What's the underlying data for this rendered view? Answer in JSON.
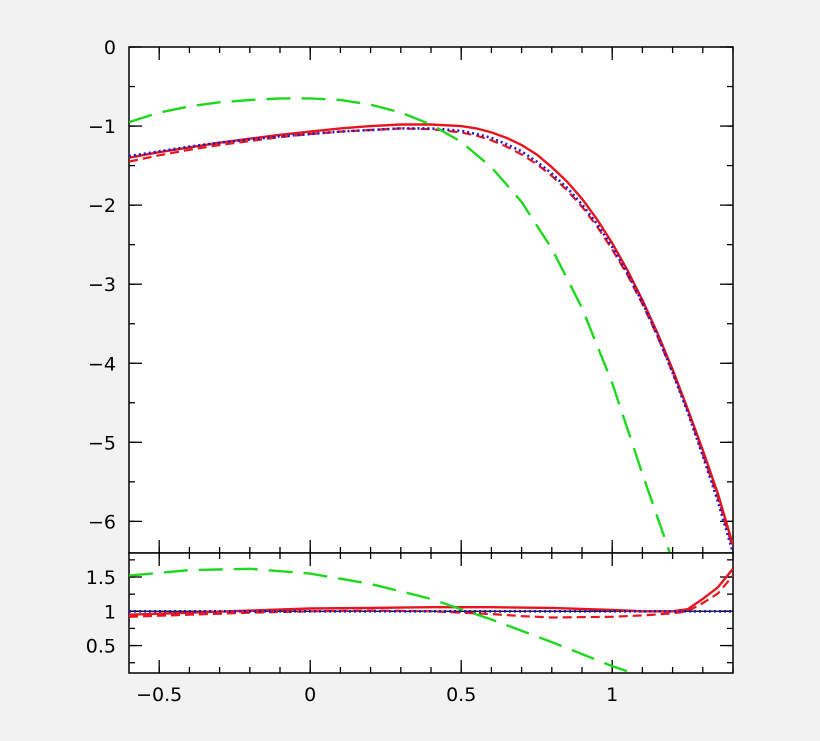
{
  "chart_data": [
    {
      "type": "line",
      "xlim": [
        -0.6,
        1.4
      ],
      "ylim": [
        -6.4,
        0
      ],
      "grid": false,
      "x_ticks": [
        -0.5,
        0,
        0.5,
        1
      ],
      "x_tick_labels": [
        "",
        "",
        "",
        ""
      ],
      "y_ticks": [
        0,
        -1,
        -2,
        -3,
        -4,
        -5,
        -6
      ],
      "y_tick_labels": [
        "0",
        "−1",
        "−2",
        "−3",
        "−4",
        "−5",
        "−6"
      ],
      "series": [
        {
          "style": "solid",
          "color": "#e8141e",
          "x": [
            -0.6,
            -0.5,
            -0.4,
            -0.3,
            -0.2,
            -0.1,
            0,
            0.1,
            0.2,
            0.3,
            0.4,
            0.5,
            0.55,
            0.6,
            0.65,
            0.7,
            0.75,
            0.8,
            0.85,
            0.9,
            0.95,
            1,
            1.05,
            1.1,
            1.15,
            1.2,
            1.25,
            1.3,
            1.35,
            1.4
          ],
          "y": [
            -1.4,
            -1.33,
            -1.27,
            -1.21,
            -1.16,
            -1.11,
            -1.07,
            -1.03,
            -1,
            -0.98,
            -0.98,
            -1,
            -1.03,
            -1.08,
            -1.15,
            -1.24,
            -1.36,
            -1.52,
            -1.7,
            -1.92,
            -2.18,
            -2.48,
            -2.82,
            -3.2,
            -3.62,
            -4.08,
            -4.58,
            -5.1,
            -5.65,
            -6.3
          ]
        },
        {
          "style": "dashed",
          "color": "#e8141e",
          "x": [
            -0.6,
            -0.5,
            -0.4,
            -0.3,
            -0.2,
            -0.1,
            0,
            0.1,
            0.2,
            0.3,
            0.4,
            0.5,
            0.55,
            0.6,
            0.65,
            0.7,
            0.75,
            0.8,
            0.85,
            0.9,
            0.95,
            1,
            1.05,
            1.1,
            1.15,
            1.2,
            1.25,
            1.3,
            1.35,
            1.4
          ],
          "y": [
            -1.45,
            -1.37,
            -1.3,
            -1.24,
            -1.19,
            -1.14,
            -1.1,
            -1.07,
            -1.05,
            -1.03,
            -1.04,
            -1.08,
            -1.12,
            -1.18,
            -1.26,
            -1.36,
            -1.48,
            -1.63,
            -1.81,
            -2.02,
            -2.27,
            -2.56,
            -2.88,
            -3.25,
            -3.66,
            -4.12,
            -4.6,
            -5.15,
            -5.7,
            -6.35
          ]
        },
        {
          "style": "dotted",
          "color": "#1a1acc",
          "x": [
            -0.6,
            -0.5,
            -0.4,
            -0.3,
            -0.2,
            -0.1,
            0,
            0.1,
            0.2,
            0.3,
            0.4,
            0.5,
            0.55,
            0.6,
            0.65,
            0.7,
            0.75,
            0.8,
            0.85,
            0.9,
            0.95,
            1,
            1.05,
            1.1,
            1.15,
            1.2,
            1.25,
            1.3,
            1.35,
            1.4
          ],
          "y": [
            -1.38,
            -1.32,
            -1.26,
            -1.21,
            -1.17,
            -1.13,
            -1.1,
            -1.07,
            -1.05,
            -1.03,
            -1.03,
            -1.06,
            -1.1,
            -1.15,
            -1.23,
            -1.32,
            -1.45,
            -1.6,
            -1.78,
            -1.99,
            -2.24,
            -2.53,
            -2.86,
            -3.23,
            -3.65,
            -4.12,
            -4.62,
            -5.17,
            -5.75,
            -6.4
          ]
        },
        {
          "style": "long-dashed",
          "color": "#1ed81e",
          "x": [
            -0.6,
            -0.5,
            -0.4,
            -0.3,
            -0.2,
            -0.1,
            0,
            0.1,
            0.2,
            0.3,
            0.4,
            0.5,
            0.6,
            0.7,
            0.8,
            0.9,
            1,
            1.1,
            1.2,
            1.25
          ],
          "y": [
            -0.95,
            -0.83,
            -0.75,
            -0.7,
            -0.67,
            -0.65,
            -0.65,
            -0.67,
            -0.73,
            -0.83,
            -0.98,
            -1.2,
            -1.52,
            -1.96,
            -2.55,
            -3.3,
            -4.25,
            -5.4,
            -6.5,
            -7.1
          ]
        }
      ]
    },
    {
      "type": "line",
      "xlim": [
        -0.6,
        1.4
      ],
      "ylim": [
        0.1,
        1.85
      ],
      "grid": false,
      "x_ticks": [
        -0.5,
        0,
        0.5,
        1
      ],
      "x_tick_labels": [
        "−0.5",
        "0",
        "0.5",
        "1"
      ],
      "y_ticks": [
        1.5,
        1,
        0.5
      ],
      "y_tick_labels": [
        "1.5",
        "1",
        "0.5"
      ],
      "reference_line": {
        "y": 1,
        "color": "#000000"
      },
      "series": [
        {
          "style": "solid",
          "color": "#e8141e",
          "x": [
            -0.6,
            -0.4,
            -0.2,
            0,
            0.2,
            0.4,
            0.6,
            0.8,
            1,
            1.1,
            1.2,
            1.25,
            1.3,
            1.35,
            1.4
          ],
          "y": [
            0.95,
            0.98,
            1.01,
            1.04,
            1.05,
            1.06,
            1.06,
            1.05,
            1.02,
            1,
            1,
            1.03,
            1.18,
            1.35,
            1.62
          ]
        },
        {
          "style": "dashed",
          "color": "#e8141e",
          "x": [
            -0.6,
            -0.4,
            -0.2,
            0,
            0.2,
            0.4,
            0.6,
            0.7,
            0.8,
            1,
            1.1,
            1.2,
            1.25,
            1.3,
            1.35,
            1.4
          ],
          "y": [
            0.92,
            0.95,
            0.98,
            1,
            1.01,
            1,
            0.96,
            0.93,
            0.91,
            0.92,
            0.94,
            0.97,
            1,
            1.12,
            1.26,
            1.52
          ]
        },
        {
          "style": "dotted",
          "color": "#1a1acc",
          "x": [
            -0.6,
            0,
            0.5,
            1,
            1.4
          ],
          "y": [
            1,
            1,
            1,
            1,
            1
          ]
        },
        {
          "style": "long-dashed",
          "color": "#1ed81e",
          "x": [
            -0.6,
            -0.4,
            -0.2,
            0,
            0.2,
            0.4,
            0.6,
            0.8,
            1,
            1.1
          ],
          "y": [
            1.52,
            1.6,
            1.62,
            1.55,
            1.4,
            1.18,
            0.88,
            0.55,
            0.2,
            0.05
          ]
        }
      ]
    }
  ]
}
